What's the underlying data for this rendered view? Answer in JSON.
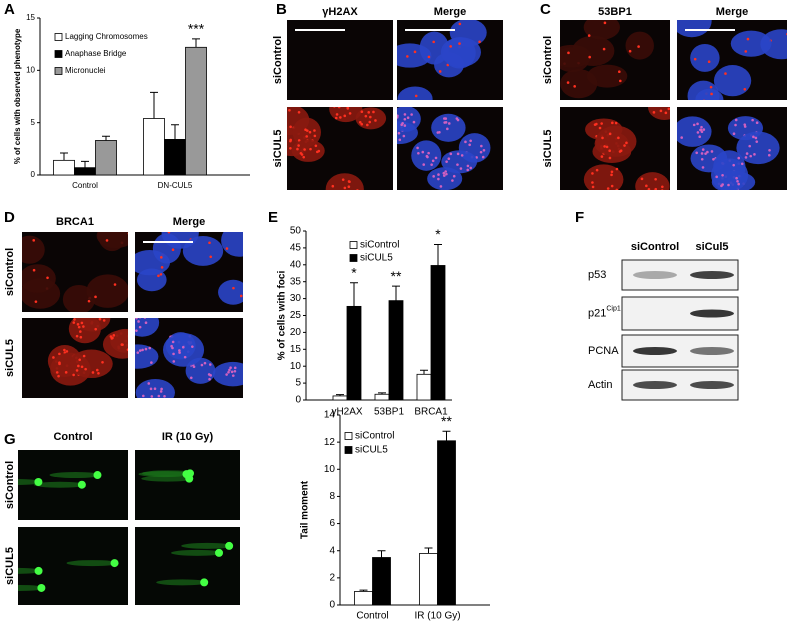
{
  "panel_letters": [
    "A",
    "B",
    "C",
    "D",
    "E",
    "F",
    "G"
  ],
  "chart_data": [
    {
      "type": "bar",
      "ylabel": "% of cells with observed phenotype",
      "categories": [
        "Control",
        "DN-CUL5"
      ],
      "series": [
        {
          "name": "Lagging Chromosomes",
          "color": "#ffffff",
          "values": [
            1.4,
            5.4
          ],
          "errors": [
            0.7,
            2.5
          ],
          "annotations": [
            null,
            null
          ]
        },
        {
          "name": "Anaphase Bridge",
          "color": "#000000",
          "values": [
            0.7,
            3.4
          ],
          "errors": [
            0.6,
            1.4
          ],
          "annotations": [
            null,
            null
          ]
        },
        {
          "name": "Micronuclei",
          "color": "#999999",
          "values": [
            3.3,
            12.2
          ],
          "errors": [
            0.4,
            0.8
          ],
          "annotations": [
            null,
            "***"
          ]
        }
      ],
      "ylim": [
        0,
        15
      ],
      "yticks": [
        0,
        5,
        10,
        15
      ]
    },
    {
      "type": "bar",
      "ylabel": "% of cells with foci",
      "categories": [
        "γH2AX",
        "53BP1",
        "BRCA1"
      ],
      "series": [
        {
          "name": "siControl",
          "color": "#ffffff",
          "values": [
            1.2,
            1.7,
            7.6
          ],
          "errors": [
            0.4,
            0.4,
            1.2
          ],
          "annotations": [
            null,
            null,
            null
          ]
        },
        {
          "name": "siCUL5",
          "color": "#000000",
          "values": [
            27.7,
            29.4,
            39.8
          ],
          "errors": [
            7.0,
            4.3,
            6.2
          ],
          "annotations": [
            "*",
            "**",
            "*"
          ]
        }
      ],
      "ylim": [
        0,
        50
      ],
      "yticks": [
        0,
        5,
        10,
        15,
        20,
        25,
        30,
        35,
        40,
        45,
        50
      ]
    },
    {
      "type": "bar",
      "ylabel": "Tail moment",
      "categories": [
        "Control",
        "IR (10 Gy)"
      ],
      "series": [
        {
          "name": "siControl",
          "color": "#ffffff",
          "values": [
            1.0,
            3.8
          ],
          "errors": [
            0.1,
            0.4
          ],
          "annotations": [
            null,
            null
          ]
        },
        {
          "name": "siCUL5",
          "color": "#000000",
          "values": [
            3.5,
            12.1
          ],
          "errors": [
            0.5,
            0.7
          ],
          "annotations": [
            null,
            "**"
          ]
        }
      ],
      "ylim": [
        0,
        14
      ],
      "yticks": [
        0,
        2,
        4,
        6,
        8,
        10,
        12,
        14
      ]
    }
  ],
  "image_panels": [
    {
      "columns": [
        "γH2AX",
        "Merge"
      ],
      "rows": [
        "siControl",
        "siCUL5"
      ]
    },
    {
      "columns": [
        "53BP1",
        "Merge"
      ],
      "rows": [
        "siControl",
        "siCUL5"
      ]
    },
    {
      "columns": [
        "BRCA1",
        "Merge"
      ],
      "rows": [
        "siControl",
        "siCUL5"
      ]
    },
    {
      "columns": [
        "Control",
        "IR (10 Gy)"
      ],
      "rows": [
        "siControl",
        "siCUL5"
      ]
    }
  ],
  "blot": {
    "columns": [
      "siControl",
      "siCul5"
    ],
    "rows": [
      {
        "label": "p53"
      },
      {
        "label": "p21",
        "superscript": "Cip1"
      },
      {
        "label": "PCNA"
      },
      {
        "label": "Actin"
      }
    ]
  }
}
